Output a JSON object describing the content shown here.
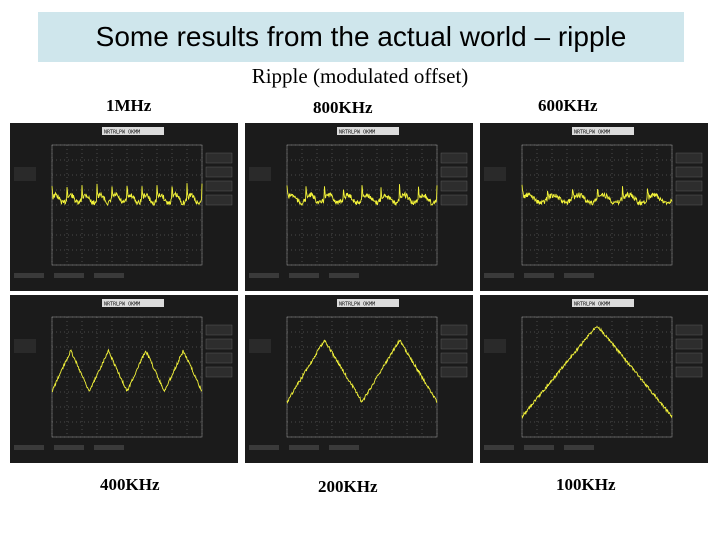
{
  "title": "Some results from the actual world – ripple",
  "subtitle": "Ripple (modulated offset)",
  "colors": {
    "title_bg": "#cfe6ec",
    "trace": "#f2f23a",
    "scope_bg": "#1b1b1b",
    "grid": "#7a7a7a"
  },
  "panels": [
    {
      "label": "1MHz",
      "wave": "spiky",
      "period_div": 1.0,
      "mode": "NRTRLPW OKMM"
    },
    {
      "label": "800KHz",
      "wave": "spiky",
      "period_div": 1.25,
      "mode": "NRTRLPW OKMM"
    },
    {
      "label": "600KHz",
      "wave": "spiky",
      "period_div": 1.67,
      "mode": "NRTRLPW OKMM"
    },
    {
      "label": "400KHz",
      "wave": "triangle",
      "period_div": 2.5,
      "mode": "NRTRLPW OKMM"
    },
    {
      "label": "200KHz",
      "wave": "triangle",
      "period_div": 5.0,
      "mode": "NRTRLPW OKMM"
    },
    {
      "label": "100KHz",
      "wave": "triangle",
      "period_div": 10.0,
      "mode": "NRTRLPW OKMM"
    }
  ]
}
